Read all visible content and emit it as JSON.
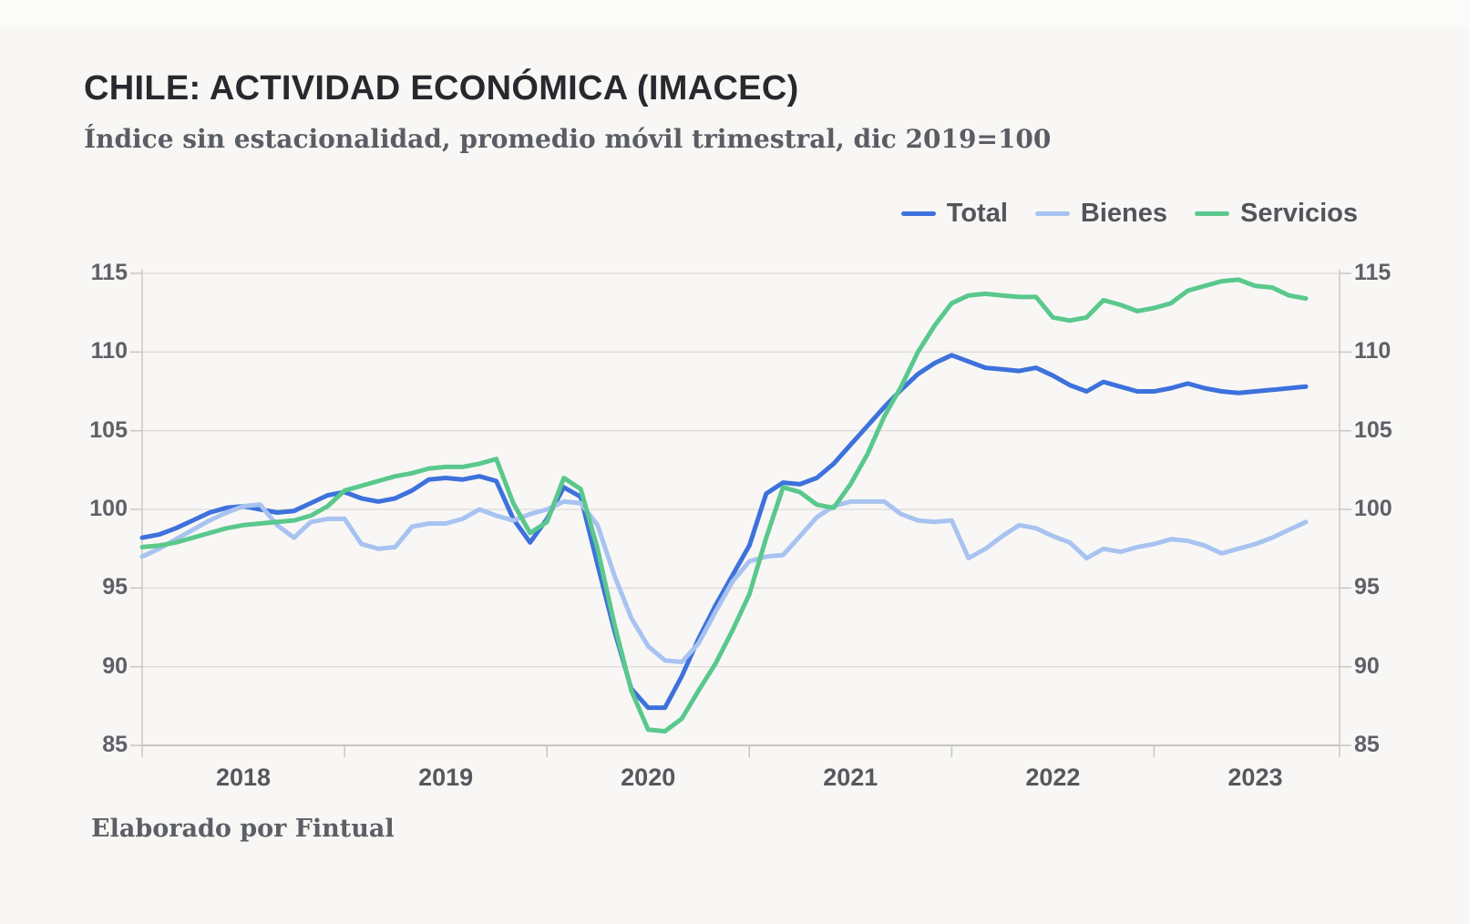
{
  "page": {
    "background": "#f8f7f5"
  },
  "header": {
    "title": "CHILE: ACTIVIDAD ECONÓMICA (IMACEC)",
    "subtitle": "Índice sin estacionalidad, promedio móvil trimestral, dic 2019=100"
  },
  "footer": {
    "credit": "Elaborado por Fintual"
  },
  "legend": {
    "items": [
      {
        "label": "Total",
        "color": "#3d71dc"
      },
      {
        "label": "Bienes",
        "color": "#a8c3f0"
      },
      {
        "label": "Servicios",
        "color": "#5ac88c"
      }
    ]
  },
  "chart_data": {
    "type": "line",
    "title": "CHILE: ACTIVIDAD ECONÓMICA (IMACEC)",
    "subtitle": "Índice sin estacionalidad, promedio móvil trimestral, dic 2019=100",
    "x_unit": "month",
    "x_start": "2018-01",
    "x_end": "2023-10",
    "x_tick_years": [
      "2018",
      "2019",
      "2020",
      "2021",
      "2022",
      "2023"
    ],
    "y_ticks": [
      85,
      90,
      95,
      100,
      105,
      110,
      115
    ],
    "ylim": [
      85,
      115
    ],
    "grid": "horizontal",
    "legend_position": "top-right",
    "colors": {
      "grid": "#dddcd9",
      "axis": "#c8c7c4",
      "bottom_axis": "#c6c5c2"
    },
    "series": [
      {
        "name": "Total",
        "color": "#3d71dc",
        "values": [
          98.2,
          98.4,
          98.8,
          99.3,
          99.8,
          100.1,
          100.2,
          100.0,
          99.8,
          99.9,
          100.4,
          100.9,
          101.1,
          100.7,
          100.5,
          100.7,
          101.2,
          101.9,
          102.0,
          101.9,
          102.1,
          101.8,
          99.4,
          97.9,
          99.4,
          101.4,
          100.8,
          96.5,
          92.3,
          88.6,
          87.4,
          87.4,
          89.4,
          91.8,
          93.9,
          95.8,
          97.7,
          101.0,
          101.7,
          101.6,
          102.0,
          102.9,
          104.1,
          105.3,
          106.5,
          107.6,
          108.6,
          109.3,
          109.8,
          109.4,
          109.0,
          108.9,
          108.8,
          109.0,
          108.5,
          107.9,
          107.5,
          108.1,
          107.8,
          107.5,
          107.5,
          107.7,
          108.0,
          107.7,
          107.5,
          107.4,
          107.5,
          107.6,
          107.7,
          107.8
        ]
      },
      {
        "name": "Bienes",
        "color": "#a8c3f0",
        "values": [
          97.0,
          97.5,
          98.1,
          98.7,
          99.3,
          99.8,
          100.2,
          100.3,
          99.0,
          98.2,
          99.2,
          99.4,
          99.4,
          97.8,
          97.5,
          97.6,
          98.9,
          99.1,
          99.1,
          99.4,
          100.0,
          99.6,
          99.3,
          99.7,
          100.0,
          100.5,
          100.4,
          99.0,
          95.8,
          93.1,
          91.3,
          90.4,
          90.3,
          91.5,
          93.5,
          95.4,
          96.7,
          97.0,
          97.1,
          98.3,
          99.5,
          100.2,
          100.5,
          100.5,
          100.5,
          99.7,
          99.3,
          99.2,
          99.3,
          96.9,
          97.5,
          98.3,
          99.0,
          98.8,
          98.3,
          97.9,
          96.9,
          97.5,
          97.3,
          97.6,
          97.8,
          98.1,
          98.0,
          97.7,
          97.2,
          97.5,
          97.8,
          98.2,
          98.7,
          99.2
        ]
      },
      {
        "name": "Servicios",
        "color": "#5ac88c",
        "values": [
          97.6,
          97.7,
          97.9,
          98.2,
          98.5,
          98.8,
          99.0,
          99.1,
          99.2,
          99.3,
          99.6,
          100.2,
          101.2,
          101.5,
          101.8,
          102.1,
          102.3,
          102.6,
          102.7,
          102.7,
          102.9,
          103.2,
          100.4,
          98.5,
          99.2,
          102.0,
          101.3,
          97.5,
          92.7,
          88.5,
          86.0,
          85.9,
          86.7,
          88.5,
          90.2,
          92.3,
          94.6,
          98.2,
          101.4,
          101.1,
          100.3,
          100.1,
          101.6,
          103.5,
          105.9,
          107.8,
          110.0,
          111.7,
          113.1,
          113.6,
          113.7,
          113.6,
          113.5,
          113.5,
          112.2,
          112.0,
          112.2,
          113.3,
          113.0,
          112.6,
          112.8,
          113.1,
          113.9,
          114.2,
          114.5,
          114.6,
          114.2,
          114.1,
          113.6,
          113.4
        ]
      }
    ]
  }
}
